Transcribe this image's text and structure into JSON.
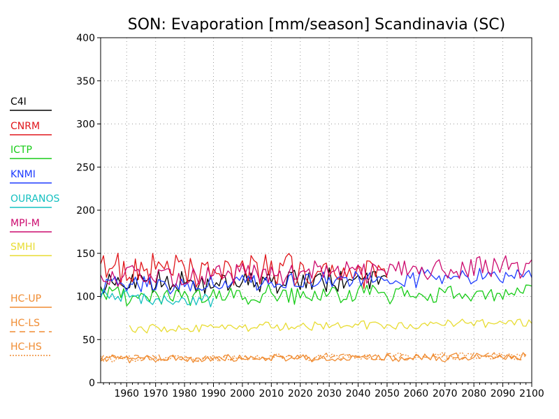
{
  "chart_data": {
    "type": "line",
    "title": "SON: Evaporation [mm/season] Scandinavia (SC)",
    "xlabel": "",
    "ylabel": "",
    "xlim": [
      1951,
      2100
    ],
    "ylim": [
      0,
      400
    ],
    "x_ticks": [
      1960,
      1970,
      1980,
      1990,
      2000,
      2010,
      2020,
      2030,
      2040,
      2050,
      2060,
      2070,
      2080,
      2090,
      2100
    ],
    "y_ticks": [
      0,
      50,
      100,
      150,
      200,
      250,
      300,
      350,
      400
    ],
    "grid": true,
    "legend_position": "left",
    "series": [
      {
        "name": "C4I",
        "color": "#000000",
        "dash": "solid",
        "start": 1951,
        "end": 2050,
        "mean_start": 115,
        "mean_end": 120,
        "amplitude": 12,
        "seed": 3
      },
      {
        "name": "CNRM",
        "color": "#e0161b",
        "dash": "solid",
        "start": 1951,
        "end": 2050,
        "mean_start": 132,
        "mean_end": 128,
        "amplitude": 16,
        "seed": 7
      },
      {
        "name": "ICTP",
        "color": "#18cc18",
        "dash": "solid",
        "start": 1951,
        "end": 2100,
        "mean_start": 100,
        "mean_end": 105,
        "amplitude": 10,
        "seed": 11
      },
      {
        "name": "KNMI",
        "color": "#1e3cff",
        "dash": "solid",
        "start": 1951,
        "end": 2100,
        "mean_start": 112,
        "mean_end": 125,
        "amplitude": 10,
        "seed": 13
      },
      {
        "name": "OURANOS",
        "color": "#14c0c0",
        "dash": "solid",
        "start": 1951,
        "end": 1990,
        "mean_start": 100,
        "mean_end": 96,
        "amplitude": 7,
        "seed": 17
      },
      {
        "name": "MPI-M",
        "color": "#cc0a6e",
        "dash": "solid",
        "start": 1951,
        "end": 2100,
        "mean_start": 122,
        "mean_end": 135,
        "amplitude": 12,
        "seed": 19
      },
      {
        "name": "SMHI",
        "color": "#e8dc32",
        "dash": "solid",
        "start": 1961,
        "end": 2100,
        "mean_start": 62,
        "mean_end": 70,
        "amplitude": 5,
        "seed": 23
      },
      {
        "name": "HC-UP",
        "color": "#f08c32",
        "dash": "solid",
        "start": 1951,
        "end": 2098,
        "mean_start": 27,
        "mean_end": 30,
        "amplitude": 4,
        "seed": 29
      },
      {
        "name": "HC-LS",
        "color": "#f08c32",
        "dash": "8,6",
        "start": 1951,
        "end": 2098,
        "mean_start": 28,
        "mean_end": 31,
        "amplitude": 4,
        "seed": 31
      },
      {
        "name": "HC-HS",
        "color": "#f08c32",
        "dash": "2,2",
        "start": 1951,
        "end": 2098,
        "mean_start": 28,
        "mean_end": 31,
        "amplitude": 4,
        "seed": 37
      }
    ]
  }
}
